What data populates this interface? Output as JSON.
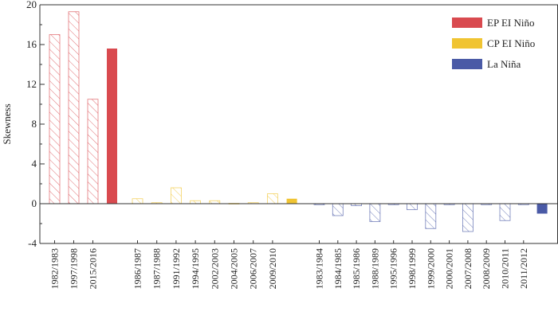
{
  "chart_data": {
    "type": "bar",
    "title": "",
    "xlabel": "",
    "ylabel": "Skewness",
    "ylim": [
      -4,
      20
    ],
    "yticks": [
      -4,
      0,
      4,
      8,
      12,
      16,
      20
    ],
    "grid": false,
    "legend_position": "top-right",
    "legend": [
      {
        "name": "EP  EI  Niño",
        "color": "#d94a4f"
      },
      {
        "name": "CP  EI  Niño",
        "color": "#f0c432"
      },
      {
        "name": "La  Niña",
        "color": "#4a5aa6"
      }
    ],
    "groups": [
      {
        "kind": "EP",
        "color": "#d94a4f",
        "bars": [
          {
            "label": "1982/1983",
            "value": 17.0,
            "style": "hatched"
          },
          {
            "label": "1997/1998",
            "value": 19.3,
            "style": "hatched"
          },
          {
            "label": "2015/2016",
            "value": 10.5,
            "style": "hatched"
          },
          {
            "label": "",
            "value": 15.6,
            "style": "solid"
          }
        ]
      },
      {
        "kind": "CP",
        "color": "#f0c432",
        "bars": [
          {
            "label": "1986/1987",
            "value": 0.5,
            "style": "hatched"
          },
          {
            "label": "1987/1988",
            "value": 0.1,
            "style": "hatched"
          },
          {
            "label": "1991/1992",
            "value": 1.6,
            "style": "hatched"
          },
          {
            "label": "1994/1995",
            "value": 0.3,
            "style": "hatched"
          },
          {
            "label": "2002/2003",
            "value": 0.3,
            "style": "hatched"
          },
          {
            "label": "2004/2005",
            "value": 0.0,
            "style": "hatched"
          },
          {
            "label": "2006/2007",
            "value": 0.1,
            "style": "hatched"
          },
          {
            "label": "2009/2010",
            "value": 1.0,
            "style": "hatched"
          },
          {
            "label": "",
            "value": 0.5,
            "style": "solid"
          }
        ]
      },
      {
        "kind": "LaNina",
        "color": "#4a5aa6",
        "bars": [
          {
            "label": "1983/1984",
            "value": -0.1,
            "style": "hatched"
          },
          {
            "label": "1984/1985",
            "value": -1.2,
            "style": "hatched"
          },
          {
            "label": "1985/1986",
            "value": -0.2,
            "style": "hatched"
          },
          {
            "label": "1988/1989",
            "value": -1.8,
            "style": "hatched"
          },
          {
            "label": "1995/1996",
            "value": -0.1,
            "style": "hatched"
          },
          {
            "label": "1998/1999",
            "value": -0.6,
            "style": "hatched"
          },
          {
            "label": "1999/2000",
            "value": -2.5,
            "style": "hatched"
          },
          {
            "label": "2000/2001",
            "value": -0.1,
            "style": "hatched"
          },
          {
            "label": "2007/2008",
            "value": -2.8,
            "style": "hatched"
          },
          {
            "label": "2008/2009",
            "value": -0.1,
            "style": "hatched"
          },
          {
            "label": "2010/2011",
            "value": -1.7,
            "style": "hatched"
          },
          {
            "label": "2011/2012",
            "value": -0.1,
            "style": "hatched"
          },
          {
            "label": "",
            "value": -1.0,
            "style": "solid"
          }
        ]
      }
    ]
  }
}
